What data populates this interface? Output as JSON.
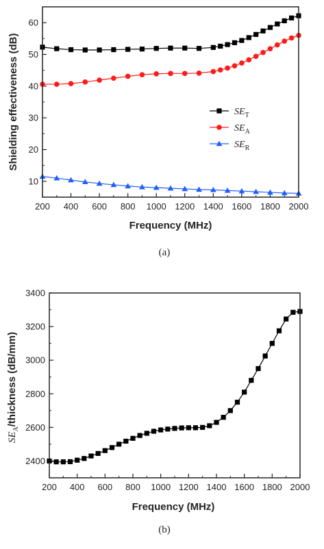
{
  "colors": {
    "se_t": "#000000",
    "se_a": "#ff1a1a",
    "se_r": "#1f5fff",
    "axis": "#222222"
  },
  "chart_data": [
    {
      "type": "line",
      "caption": "(a)",
      "xlabel": "Frequency (MHz)",
      "ylabel": "Shielding effectiveness (dB)",
      "xlim": [
        200,
        2000
      ],
      "ylim": [
        5,
        65
      ],
      "xticks": [
        200,
        400,
        600,
        800,
        1000,
        1200,
        1400,
        1600,
        1800,
        2000
      ],
      "yticks": [
        10,
        20,
        30,
        40,
        50,
        60
      ],
      "legend": "center-right",
      "series": [
        {
          "name": "SE_T",
          "label_main": "SE",
          "label_sub": "T",
          "marker": "square",
          "color_key": "se_t",
          "x": [
            200,
            300,
            400,
            500,
            600,
            700,
            800,
            900,
            1000,
            1100,
            1200,
            1300,
            1400,
            1450,
            1500,
            1550,
            1600,
            1650,
            1700,
            1750,
            1800,
            1850,
            1900,
            1950,
            2000
          ],
          "y": [
            52.3,
            51.8,
            51.5,
            51.4,
            51.4,
            51.5,
            51.6,
            51.7,
            51.9,
            52.0,
            52.0,
            51.9,
            52.2,
            52.6,
            53.1,
            53.7,
            54.4,
            55.3,
            56.3,
            57.4,
            58.5,
            59.6,
            60.6,
            61.5,
            62.2
          ]
        },
        {
          "name": "SE_A",
          "label_main": "SE",
          "label_sub": "A",
          "marker": "circle",
          "color_key": "se_a",
          "x": [
            200,
            300,
            400,
            500,
            600,
            700,
            800,
            900,
            1000,
            1100,
            1200,
            1300,
            1400,
            1450,
            1500,
            1550,
            1600,
            1650,
            1700,
            1750,
            1800,
            1850,
            1900,
            1950,
            2000
          ],
          "y": [
            40.6,
            40.6,
            40.8,
            41.3,
            41.9,
            42.5,
            43.1,
            43.6,
            43.9,
            44.0,
            44.0,
            44.1,
            44.6,
            45.1,
            45.7,
            46.4,
            47.3,
            48.3,
            49.4,
            50.6,
            51.8,
            53.0,
            54.2,
            55.2,
            56.0
          ]
        },
        {
          "name": "SE_R",
          "label_main": "SE",
          "label_sub": "R",
          "marker": "triangle",
          "color_key": "se_r",
          "x": [
            200,
            300,
            400,
            500,
            600,
            700,
            800,
            900,
            1000,
            1100,
            1200,
            1300,
            1400,
            1500,
            1600,
            1700,
            1800,
            1900,
            2000
          ],
          "y": [
            11.5,
            11.0,
            10.4,
            9.8,
            9.3,
            8.9,
            8.5,
            8.2,
            8.0,
            7.8,
            7.6,
            7.4,
            7.3,
            7.1,
            6.9,
            6.7,
            6.5,
            6.3,
            6.2
          ]
        }
      ]
    },
    {
      "type": "line",
      "caption": "(b)",
      "xlabel": "Frequency (MHz)",
      "ylabel_main": "SE",
      "ylabel_sub": "A",
      "ylabel_rest": "/thickness (dB/mm)",
      "xlim": [
        200,
        2000
      ],
      "ylim": [
        2300,
        3400
      ],
      "xticks": [
        200,
        400,
        600,
        800,
        1000,
        1200,
        1400,
        1600,
        1800,
        2000
      ],
      "yticks": [
        2400,
        2600,
        2800,
        3000,
        3200,
        3400
      ],
      "series": [
        {
          "name": "SE_A/thickness",
          "marker": "square",
          "color_key": "se_t",
          "x": [
            200,
            250,
            300,
            350,
            400,
            450,
            500,
            550,
            600,
            650,
            700,
            750,
            800,
            850,
            900,
            950,
            1000,
            1050,
            1100,
            1150,
            1200,
            1250,
            1300,
            1350,
            1400,
            1450,
            1500,
            1550,
            1600,
            1650,
            1700,
            1750,
            1800,
            1850,
            1900,
            1950,
            2000
          ],
          "y": [
            2400,
            2395,
            2395,
            2396,
            2405,
            2415,
            2430,
            2445,
            2462,
            2480,
            2500,
            2518,
            2535,
            2552,
            2565,
            2577,
            2585,
            2590,
            2594,
            2597,
            2598,
            2598,
            2600,
            2610,
            2630,
            2660,
            2700,
            2750,
            2810,
            2880,
            2950,
            3025,
            3100,
            3175,
            3245,
            3285,
            3290
          ]
        }
      ]
    }
  ]
}
